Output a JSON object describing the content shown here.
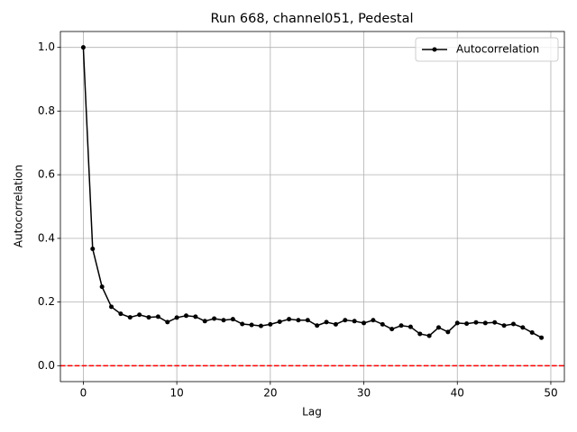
{
  "chart_data": {
    "type": "line",
    "title": "Run 668, channel051, Pedestal",
    "xlabel": "Lag",
    "ylabel": "Autocorrelation",
    "x": [
      0,
      1,
      2,
      3,
      4,
      5,
      6,
      7,
      8,
      9,
      10,
      11,
      12,
      13,
      14,
      15,
      16,
      17,
      18,
      19,
      20,
      21,
      22,
      23,
      24,
      25,
      26,
      27,
      28,
      29,
      30,
      31,
      32,
      33,
      34,
      35,
      36,
      37,
      38,
      39,
      40,
      41,
      42,
      43,
      44,
      45,
      46,
      47,
      48,
      49
    ],
    "series": [
      {
        "name": "Autocorrelation",
        "color": "#000000",
        "values": [
          1.0,
          0.367,
          0.248,
          0.185,
          0.163,
          0.152,
          0.16,
          0.152,
          0.154,
          0.137,
          0.151,
          0.157,
          0.154,
          0.14,
          0.148,
          0.143,
          0.146,
          0.131,
          0.128,
          0.125,
          0.13,
          0.138,
          0.146,
          0.143,
          0.143,
          0.126,
          0.137,
          0.13,
          0.143,
          0.14,
          0.134,
          0.143,
          0.13,
          0.115,
          0.126,
          0.122,
          0.1,
          0.094,
          0.12,
          0.106,
          0.134,
          0.132,
          0.136,
          0.134,
          0.136,
          0.126,
          0.131,
          0.12,
          0.104,
          0.088
        ]
      }
    ],
    "hlines": [
      {
        "value": 0,
        "color": "#ff0000",
        "style": "dashed"
      }
    ],
    "xlim": [
      -2.45,
      51.45
    ],
    "xticks": [
      0,
      10,
      20,
      30,
      40,
      50
    ],
    "ylim": [
      -0.05,
      1.05
    ],
    "yticks": [
      {
        "value": 0,
        "label": "0.0"
      },
      0.2,
      0.4,
      0.6,
      0.8,
      {
        "value": 1,
        "label": "1.0"
      }
    ],
    "grid": true,
    "legend": "upper right"
  }
}
